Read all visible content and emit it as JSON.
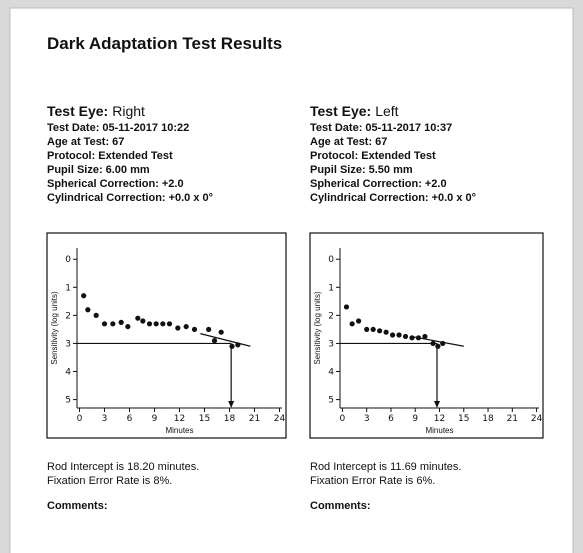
{
  "header": {
    "title": "Dark Adaptation Test Results"
  },
  "panels": [
    {
      "eye": {
        "label": "Test Eye:",
        "value": "Right"
      },
      "fields": [
        {
          "label": "Test Date:",
          "value": "05-11-2017 10:22"
        },
        {
          "label": "Age at Test:",
          "value": "67"
        },
        {
          "label": "Protocol:",
          "value": "Extended Test"
        },
        {
          "label": "Pupil Size:",
          "value": "6.00 mm"
        },
        {
          "label": "Spherical Correction:",
          "value": "+2.0"
        },
        {
          "label": "Cylindrical Correction:",
          "value": "+0.0 x 0°"
        }
      ],
      "chart_data": {
        "type": "scatter",
        "xlabel": "Minutes",
        "ylabel": "Sensitivity (log units)",
        "color": "#111111",
        "x": [
          0.5,
          1,
          2,
          3,
          4,
          5,
          5.8,
          7,
          7.6,
          8.4,
          9.2,
          10,
          10.8,
          11.8,
          12.8,
          13.8,
          15.5,
          16.2,
          17,
          18.3,
          19
        ],
        "y": [
          1.3,
          1.8,
          2.0,
          2.3,
          2.3,
          2.25,
          2.4,
          2.1,
          2.2,
          2.3,
          2.3,
          2.3,
          2.3,
          2.45,
          2.4,
          2.5,
          2.5,
          2.9,
          2.6,
          3.1,
          3.05
        ],
        "xlim": [
          -0.3,
          24.3
        ],
        "ylim": [
          -0.4,
          5.3
        ],
        "y_inverted": true,
        "xticks": [
          0,
          3,
          6,
          9,
          12,
          15,
          18,
          21,
          24
        ],
        "yticks": [
          0,
          1,
          2,
          3,
          4,
          5
        ],
        "threshold": 3,
        "intercept": 18.2,
        "fit": {
          "x": [
            14.5,
            20.5
          ],
          "y": [
            2.65,
            3.1
          ]
        }
      },
      "rod_intercept": "Rod Intercept is 18.20 minutes.",
      "fixation": "Fixation Error Rate is 8%.",
      "comments": "Comments:"
    },
    {
      "eye": {
        "label": "Test Eye:",
        "value": "Left"
      },
      "fields": [
        {
          "label": "Test Date:",
          "value": "05-11-2017 10:37"
        },
        {
          "label": "Age at Test:",
          "value": "67"
        },
        {
          "label": "Protocol:",
          "value": "Extended Test"
        },
        {
          "label": "Pupil Size:",
          "value": "5.50 mm"
        },
        {
          "label": "Spherical Correction:",
          "value": "+2.0"
        },
        {
          "label": "Cylindrical Correction:",
          "value": "+0.0 x 0°"
        }
      ],
      "chart_data": {
        "type": "scatter",
        "xlabel": "Minutes",
        "ylabel": "Sensitivity (log units)",
        "color": "#111111",
        "x": [
          0.5,
          1.2,
          2,
          3,
          3.8,
          4.6,
          5.4,
          6.2,
          7,
          7.8,
          8.6,
          9.4,
          10.2,
          11.2,
          11.8,
          12.4
        ],
        "y": [
          1.7,
          2.3,
          2.2,
          2.5,
          2.5,
          2.55,
          2.6,
          2.7,
          2.7,
          2.75,
          2.8,
          2.8,
          2.75,
          3.0,
          3.1,
          3.0
        ],
        "xlim": [
          -0.3,
          24.3
        ],
        "ylim": [
          -0.4,
          5.3
        ],
        "y_inverted": true,
        "xticks": [
          0,
          3,
          6,
          9,
          12,
          15,
          18,
          21,
          24
        ],
        "yticks": [
          0,
          1,
          2,
          3,
          4,
          5
        ],
        "threshold": 3,
        "intercept": 11.69,
        "fit": {
          "x": [
            8.5,
            15
          ],
          "y": [
            2.75,
            3.1
          ]
        }
      },
      "rod_intercept": "Rod Intercept is 11.69 minutes.",
      "fixation": "Fixation Error Rate is 6%.",
      "comments": "Comments:"
    }
  ]
}
